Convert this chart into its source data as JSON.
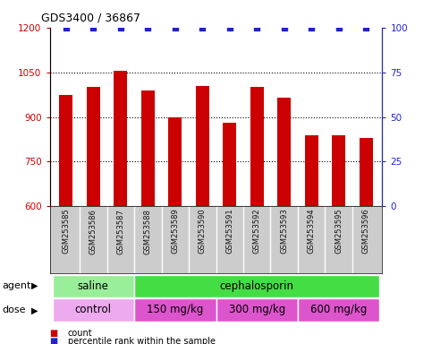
{
  "title": "GDS3400 / 36867",
  "samples": [
    "GSM253585",
    "GSM253586",
    "GSM253587",
    "GSM253588",
    "GSM253589",
    "GSM253590",
    "GSM253591",
    "GSM253592",
    "GSM253593",
    "GSM253594",
    "GSM253595",
    "GSM253596"
  ],
  "counts": [
    975,
    1000,
    1055,
    990,
    900,
    1005,
    880,
    1000,
    965,
    840,
    840,
    830
  ],
  "percentile_ranks": [
    100,
    100,
    100,
    100,
    100,
    100,
    100,
    100,
    100,
    100,
    100,
    100
  ],
  "ylim_left": [
    600,
    1200
  ],
  "ylim_right": [
    0,
    100
  ],
  "yticks_left": [
    600,
    750,
    900,
    1050,
    1200
  ],
  "yticks_right": [
    0,
    25,
    50,
    75,
    100
  ],
  "bar_color": "#cc0000",
  "dot_color": "#2222cc",
  "agent_groups": [
    {
      "label": "saline",
      "start": 0,
      "end": 3,
      "color": "#99ee99"
    },
    {
      "label": "cephalosporin",
      "start": 3,
      "end": 12,
      "color": "#44dd44"
    }
  ],
  "dose_groups": [
    {
      "label": "control",
      "start": 0,
      "end": 3,
      "color": "#eeaaee"
    },
    {
      "label": "150 mg/kg",
      "start": 3,
      "end": 6,
      "color": "#dd55cc"
    },
    {
      "label": "300 mg/kg",
      "start": 6,
      "end": 9,
      "color": "#dd55cc"
    },
    {
      "label": "600 mg/kg",
      "start": 9,
      "end": 12,
      "color": "#dd55cc"
    }
  ],
  "legend_items": [
    {
      "label": "count",
      "color": "#cc0000"
    },
    {
      "label": "percentile rank within the sample",
      "color": "#2222cc"
    }
  ],
  "left_axis_color": "#cc0000",
  "right_axis_color": "#2222cc",
  "label_bg_color": "#cccccc",
  "label_border_color": "#ffffff"
}
